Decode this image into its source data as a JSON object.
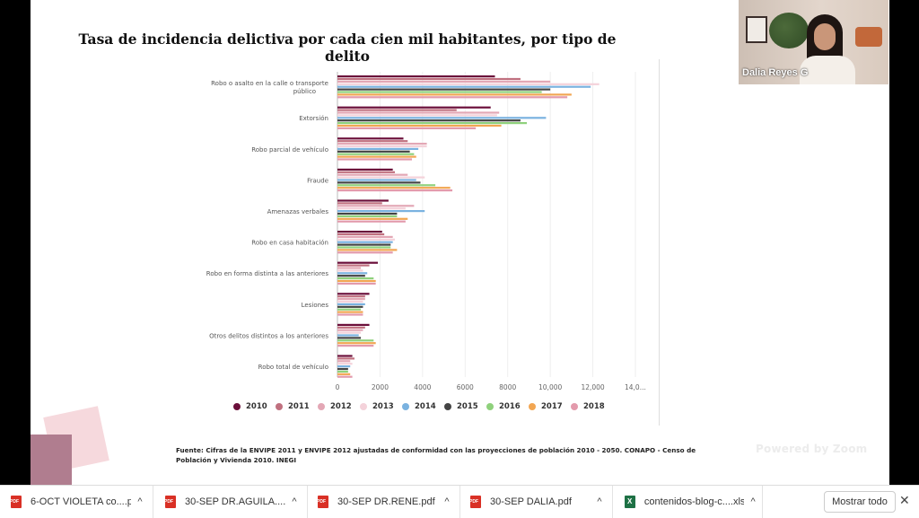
{
  "slide": {
    "title": "Tasa de incidencia delictiva por cada cien mil habitantes, por tipo de delito",
    "source": "Fuente: Cifras de la ENVIPE 2011 y ENVIPE 2012 ajustadas de conformidad con las proyecciones de población 2010 - 2050. CONAPO - Censo de Población y Vivienda 2010. INEGI",
    "watermark": "Powered by Zoom"
  },
  "video": {
    "participant_name": "Dalia Reyes G"
  },
  "chart_data": {
    "type": "bar",
    "orientation": "horizontal",
    "title": "Tasa de incidencia delictiva por cada cien mil habitantes, por tipo de delito",
    "categories": [
      [
        "Robo o asalto en la calle o transporte",
        "público"
      ],
      [
        "Extorsión"
      ],
      [
        "Robo parcial de vehículo"
      ],
      [
        "Fraude"
      ],
      [
        "Amenazas verbales"
      ],
      [
        "Robo en casa habitación"
      ],
      [
        "Robo en forma distinta a las anteriores"
      ],
      [
        "Lesiones"
      ],
      [
        "Otros delitos distintos a los anteriores"
      ],
      [
        "Robo total de vehículo"
      ]
    ],
    "xlim": [
      0,
      14000
    ],
    "x_ticks": [
      "0",
      "2000",
      "4000",
      "6000",
      "8000",
      "10,000",
      "12,000",
      "14,0..."
    ],
    "x_tick_values": [
      0,
      2000,
      4000,
      6000,
      8000,
      10000,
      12000,
      14000
    ],
    "legend_position": "bottom",
    "series": [
      {
        "name": "2010",
        "color": "#6b0f3a",
        "values": [
          7400,
          7200,
          3100,
          2600,
          2400,
          2100,
          1900,
          1500,
          1500,
          700
        ]
      },
      {
        "name": "2011",
        "color": "#c0707f",
        "values": [
          8600,
          5600,
          3300,
          2700,
          2100,
          2200,
          1500,
          1300,
          1300,
          800
        ]
      },
      {
        "name": "2012",
        "color": "#e3a7b5",
        "values": [
          10000,
          7600,
          4200,
          3300,
          3600,
          2600,
          1100,
          1300,
          1200,
          600
        ]
      },
      {
        "name": "2013",
        "color": "#f4d2da",
        "values": [
          12300,
          7500,
          4200,
          4100,
          3200,
          2700,
          1200,
          1200,
          1100,
          700
        ]
      },
      {
        "name": "2014",
        "color": "#7ab2e0",
        "values": [
          11900,
          9800,
          3800,
          3700,
          4100,
          2600,
          1400,
          1300,
          1000,
          600
        ]
      },
      {
        "name": "2015",
        "color": "#444444",
        "values": [
          10000,
          8600,
          3400,
          3900,
          2800,
          2500,
          1300,
          1200,
          1100,
          500
        ]
      },
      {
        "name": "2016",
        "color": "#8fd17c",
        "values": [
          9600,
          8900,
          3600,
          4600,
          2800,
          2500,
          1700,
          1100,
          1700,
          500
        ]
      },
      {
        "name": "2017",
        "color": "#f2a652",
        "values": [
          11000,
          7700,
          3700,
          5300,
          3300,
          2800,
          1800,
          1200,
          1800,
          600
        ]
      },
      {
        "name": "2018",
        "color": "#e39aac",
        "values": [
          10800,
          6500,
          3500,
          5400,
          3200,
          2600,
          1800,
          1200,
          1700,
          700
        ]
      }
    ]
  },
  "downloads": [
    {
      "name": "6-OCT VIOLETA co....pdf",
      "type": "pdf"
    },
    {
      "name": "30-SEP DR.AGUILA....pdf",
      "type": "pdf"
    },
    {
      "name": "30-SEP DR.RENE.pdf",
      "type": "pdf"
    },
    {
      "name": "30-SEP DALIA.pdf",
      "type": "pdf"
    },
    {
      "name": "contenidos-blog-c....xlsx",
      "type": "xlsx"
    }
  ],
  "download_bar": {
    "show_all_label": "Mostrar todo",
    "chevron": "^",
    "close": "✕"
  }
}
